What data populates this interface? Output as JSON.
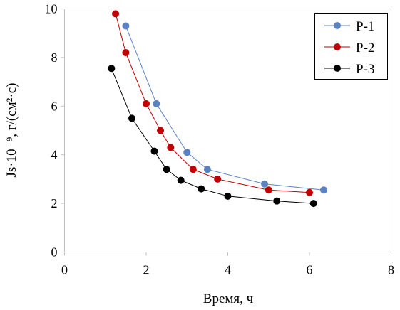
{
  "chart_data": {
    "type": "line",
    "title": "",
    "xlabel": "Время, ч",
    "ylabel": "Js·10⁻⁹, г/(см²·с)",
    "xlim": [
      0,
      8
    ],
    "ylim": [
      0,
      10
    ],
    "x_ticks": [
      "0",
      "2",
      "4",
      "6",
      "8"
    ],
    "y_ticks": [
      "0",
      "2",
      "4",
      "6",
      "8",
      "10"
    ],
    "grid": false,
    "legend_position": "top-right",
    "series": [
      {
        "name": "P-1",
        "color": "#5b83c2",
        "x": [
          1.5,
          2.25,
          3.0,
          3.5,
          4.9,
          6.35
        ],
        "y": [
          9.3,
          6.1,
          4.1,
          3.4,
          2.8,
          2.55
        ]
      },
      {
        "name": "P-2",
        "color": "#c00000",
        "x": [
          1.25,
          1.5,
          2.0,
          2.35,
          2.6,
          3.15,
          3.75,
          5.0,
          6.0
        ],
        "y": [
          9.8,
          8.2,
          6.1,
          5.0,
          4.3,
          3.4,
          3.0,
          2.55,
          2.45
        ]
      },
      {
        "name": "P-3",
        "color": "#000000",
        "x": [
          1.15,
          1.65,
          2.2,
          2.5,
          2.85,
          3.35,
          4.0,
          5.2,
          6.1
        ],
        "y": [
          7.55,
          5.5,
          4.15,
          3.4,
          2.95,
          2.6,
          2.3,
          2.1,
          2.0
        ]
      }
    ]
  }
}
